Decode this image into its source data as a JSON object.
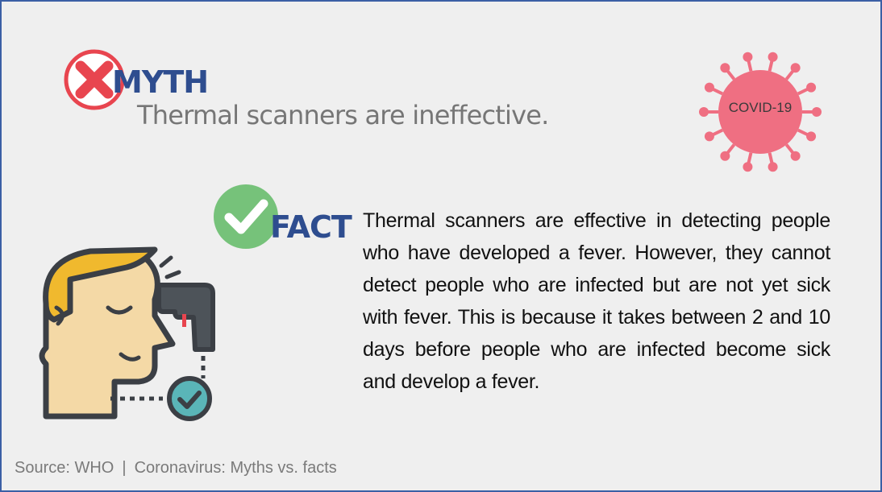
{
  "myth": {
    "label": "MYTH",
    "statement": "Thermal scanners are ineffective.",
    "icon": "x-mark-icon"
  },
  "badge": {
    "label": "COVID-19",
    "icon": "coronavirus-icon",
    "color": "#ef6f82"
  },
  "fact": {
    "label": "FACT",
    "statement": "Thermal scanners are effective in detecting people who have developed a fever. However, they cannot detect people who are infected but are not yet sick with fever. This is because it takes between 2 and 10 days before people who are infected become sick and develop a fever.",
    "icon": "check-mark-icon"
  },
  "illustration": {
    "icon": "thermal-scanner-person-icon"
  },
  "footer": {
    "source": "Source: WHO",
    "separator": "|",
    "title": "Coronavirus: Myths vs. facts"
  },
  "colors": {
    "heading_blue": "#2e4d8f",
    "myth_red": "#e8454f",
    "fact_green": "#76c27a",
    "background": "#efefef",
    "border": "#3b5fa5"
  }
}
